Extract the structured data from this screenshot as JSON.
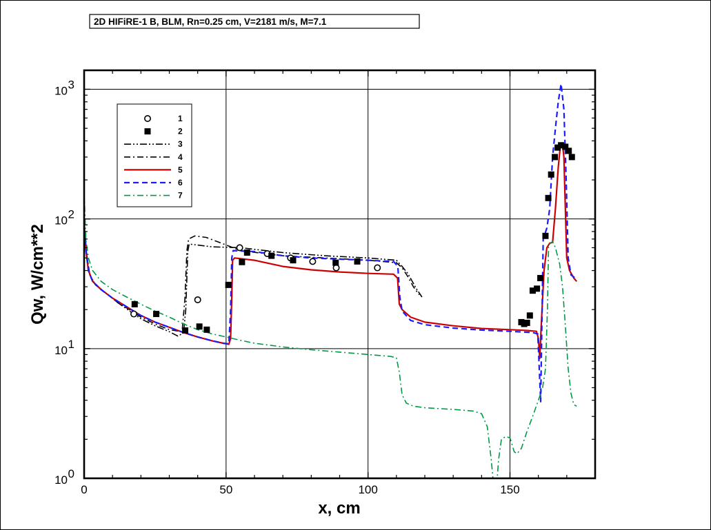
{
  "chart_data": {
    "type": "line",
    "title": "2D HIFiRE-1 B, BLM,  Rn=0.25 cm, V=2181 m/s, M=7.1",
    "xlabel": "x, cm",
    "ylabel": "Qw, W/cm**2",
    "xlim": [
      0,
      180
    ],
    "ylim": [
      1,
      1400
    ],
    "yscale": "log",
    "grid": true,
    "legend_position": "top-left",
    "x_ticks": [
      0,
      50,
      100,
      150
    ],
    "y_ticks": [
      {
        "value": 1,
        "base": "10",
        "exp": "0"
      },
      {
        "value": 10,
        "base": "10",
        "exp": "1"
      },
      {
        "value": 100,
        "base": "10",
        "exp": "2"
      },
      {
        "value": 1000,
        "base": "10",
        "exp": "3"
      }
    ],
    "series": [
      {
        "name": "1",
        "style": "marker-circle",
        "color": "#000000",
        "points": [
          [
            17.5,
            18.5
          ],
          [
            40,
            23.8
          ],
          [
            54.8,
            60
          ],
          [
            64.5,
            54
          ],
          [
            72.7,
            50
          ],
          [
            80.5,
            47
          ],
          [
            88.8,
            42
          ],
          [
            103.3,
            42
          ]
        ]
      },
      {
        "name": "2",
        "style": "marker-square",
        "color": "#000000",
        "points": [
          [
            17.8,
            22
          ],
          [
            25.4,
            18.5
          ],
          [
            35.6,
            13.8
          ],
          [
            40.6,
            14.8
          ],
          [
            43.2,
            14
          ],
          [
            50.8,
            31
          ],
          [
            55.6,
            46.5
          ],
          [
            57.4,
            55
          ],
          [
            66,
            52
          ],
          [
            73.6,
            48
          ],
          [
            88.6,
            46
          ],
          [
            96.2,
            47
          ],
          [
            154,
            16
          ],
          [
            155,
            15.5
          ],
          [
            156,
            15.8
          ],
          [
            157,
            18
          ],
          [
            158,
            28
          ],
          [
            159.5,
            29
          ],
          [
            160.7,
            35
          ],
          [
            162.5,
            74
          ],
          [
            163.5,
            145
          ],
          [
            164.5,
            220
          ],
          [
            165.8,
            300
          ],
          [
            166.8,
            355
          ],
          [
            168,
            370
          ],
          [
            169.5,
            360
          ],
          [
            170.7,
            335
          ],
          [
            171.8,
            300
          ]
        ]
      },
      {
        "name": "3",
        "style": "dash-dot-dot",
        "color": "#000000",
        "points": [
          [
            0,
            100
          ],
          [
            0.8,
            55
          ],
          [
            2,
            37
          ],
          [
            4,
            31
          ],
          [
            8,
            26.5
          ],
          [
            12,
            22.5
          ],
          [
            16,
            19.5
          ],
          [
            20,
            17
          ],
          [
            25,
            15
          ],
          [
            30,
            13.5
          ],
          [
            33,
            12.5
          ],
          [
            35,
            13.2
          ],
          [
            35.8,
            20
          ],
          [
            36.5,
            56
          ],
          [
            37,
            64
          ],
          [
            45,
            61
          ],
          [
            55,
            60
          ],
          [
            70,
            55
          ],
          [
            85,
            52
          ],
          [
            100,
            50
          ],
          [
            110,
            48
          ],
          [
            112,
            43
          ],
          [
            114,
            38
          ],
          [
            117,
            29
          ],
          [
            119,
            25
          ]
        ]
      },
      {
        "name": "4",
        "style": "dash-dot",
        "color": "#000000",
        "points": [
          [
            0,
            100
          ],
          [
            0.8,
            55
          ],
          [
            2,
            37
          ],
          [
            4,
            31
          ],
          [
            8,
            26.5
          ],
          [
            12,
            22.5
          ],
          [
            16,
            20
          ],
          [
            20,
            17.5
          ],
          [
            25,
            15.5
          ],
          [
            30,
            14
          ],
          [
            34.5,
            13.5
          ],
          [
            35.5,
            24
          ],
          [
            36.2,
            57
          ],
          [
            36.8,
            70
          ],
          [
            39,
            74
          ],
          [
            43,
            72
          ],
          [
            50,
            63
          ],
          [
            55,
            57
          ],
          [
            70,
            52
          ],
          [
            85,
            50
          ],
          [
            100,
            48
          ],
          [
            110,
            46
          ],
          [
            112,
            42
          ],
          [
            114,
            36
          ],
          [
            116,
            30
          ],
          [
            118,
            26
          ]
        ]
      },
      {
        "name": "5",
        "style": "solid",
        "color": "#cc0000",
        "points": [
          [
            0,
            90
          ],
          [
            0.7,
            55
          ],
          [
            1.5,
            40
          ],
          [
            3,
            33
          ],
          [
            6,
            28.5
          ],
          [
            10,
            24.5
          ],
          [
            15,
            21
          ],
          [
            20,
            18
          ],
          [
            25,
            16
          ],
          [
            30,
            14.6
          ],
          [
            35,
            13.3
          ],
          [
            40,
            12.3
          ],
          [
            45,
            11.5
          ],
          [
            49,
            11
          ],
          [
            51,
            10.8
          ],
          [
            51.6,
            12
          ],
          [
            52,
            25
          ],
          [
            52.3,
            48
          ],
          [
            53,
            50
          ],
          [
            60,
            48
          ],
          [
            70,
            43
          ],
          [
            80,
            40.5
          ],
          [
            90,
            39
          ],
          [
            100,
            38
          ],
          [
            109,
            37.5
          ],
          [
            110.4,
            35
          ],
          [
            111,
            22
          ],
          [
            112,
            20
          ],
          [
            115,
            17.5
          ],
          [
            120,
            16
          ],
          [
            130,
            15
          ],
          [
            140,
            14.3
          ],
          [
            150,
            14
          ],
          [
            156,
            13.8
          ],
          [
            159.3,
            13.6
          ],
          [
            160,
            12
          ],
          [
            160.5,
            8.4
          ],
          [
            161,
            15
          ],
          [
            162,
            40
          ],
          [
            163,
            60
          ],
          [
            164,
            65
          ],
          [
            165,
            66
          ],
          [
            166,
            120
          ],
          [
            167,
            250
          ],
          [
            167.7,
            360
          ],
          [
            168.5,
            375
          ],
          [
            169,
            300
          ],
          [
            169.5,
            120
          ],
          [
            170,
            50
          ],
          [
            171,
            40
          ],
          [
            172.5,
            35
          ],
          [
            173.5,
            33
          ]
        ]
      },
      {
        "name": "6",
        "style": "dashed",
        "color": "#1a1aff",
        "points": [
          [
            0,
            95
          ],
          [
            0.7,
            57
          ],
          [
            1.5,
            40
          ],
          [
            3,
            33
          ],
          [
            6,
            28.5
          ],
          [
            10,
            24.5
          ],
          [
            15,
            21
          ],
          [
            20,
            18
          ],
          [
            25,
            16
          ],
          [
            30,
            14.6
          ],
          [
            35,
            13.3
          ],
          [
            40,
            12.3
          ],
          [
            45,
            11.5
          ],
          [
            49,
            11
          ],
          [
            51,
            10.9
          ],
          [
            51.6,
            20
          ],
          [
            52,
            50
          ],
          [
            52.5,
            57
          ],
          [
            60,
            56
          ],
          [
            70,
            52
          ],
          [
            80,
            50
          ],
          [
            90,
            49
          ],
          [
            100,
            48
          ],
          [
            109,
            47
          ],
          [
            110.5,
            43
          ],
          [
            111.2,
            25
          ],
          [
            112,
            19.5
          ],
          [
            115,
            16.5
          ],
          [
            120,
            15.3
          ],
          [
            130,
            14.4
          ],
          [
            140,
            13.9
          ],
          [
            150,
            13.6
          ],
          [
            158,
            13.3
          ],
          [
            159.8,
            13
          ],
          [
            160.8,
            3.9
          ],
          [
            161.7,
            70
          ],
          [
            163,
            85
          ],
          [
            164,
            120
          ],
          [
            165,
            300
          ],
          [
            166,
            500
          ],
          [
            167,
            800
          ],
          [
            168,
            1100
          ],
          [
            169,
            700
          ],
          [
            169.8,
            200
          ],
          [
            170.5,
            50
          ],
          [
            171.5,
            37
          ],
          [
            173,
            35
          ]
        ]
      },
      {
        "name": "7",
        "style": "dash-dot",
        "color": "#009944",
        "points": [
          [
            0,
            160
          ],
          [
            0.6,
            70
          ],
          [
            1.5,
            50
          ],
          [
            3,
            40
          ],
          [
            6,
            33
          ],
          [
            10,
            28.5
          ],
          [
            15,
            25
          ],
          [
            20,
            22
          ],
          [
            25,
            19.5
          ],
          [
            30,
            17.5
          ],
          [
            35,
            15.5
          ],
          [
            40,
            14
          ],
          [
            45,
            13
          ],
          [
            50,
            12.3
          ],
          [
            55,
            11.6
          ],
          [
            60,
            11
          ],
          [
            70,
            10.3
          ],
          [
            80,
            9.8
          ],
          [
            90,
            9.4
          ],
          [
            100,
            9
          ],
          [
            108,
            8.7
          ],
          [
            110,
            8.5
          ],
          [
            111,
            6.6
          ],
          [
            112,
            4.4
          ],
          [
            113.5,
            3.8
          ],
          [
            116,
            3.6
          ],
          [
            120,
            3.5
          ],
          [
            130,
            3.4
          ],
          [
            137,
            3.3
          ],
          [
            140,
            3.15
          ],
          [
            142,
            2.5
          ],
          [
            143.4,
            1.4
          ],
          [
            144,
            1
          ],
          [
            145.5,
            1
          ],
          [
            146,
            1.4
          ],
          [
            147,
            2
          ],
          [
            148.5,
            2.1
          ],
          [
            150,
            2.05
          ],
          [
            151.5,
            1.6
          ],
          [
            152.5,
            1.55
          ],
          [
            154,
            1.7
          ],
          [
            156,
            2.3
          ],
          [
            158,
            3
          ],
          [
            160,
            4
          ],
          [
            161.5,
            5
          ],
          [
            162.5,
            7
          ],
          [
            163.2,
            20
          ],
          [
            163.6,
            63
          ],
          [
            165,
            67
          ],
          [
            166,
            60
          ],
          [
            167.5,
            45
          ],
          [
            168.5,
            30
          ],
          [
            169.5,
            15
          ],
          [
            170.5,
            7
          ],
          [
            171.5,
            4.5
          ],
          [
            172.5,
            3.7
          ],
          [
            173.5,
            3.6
          ]
        ]
      }
    ]
  }
}
